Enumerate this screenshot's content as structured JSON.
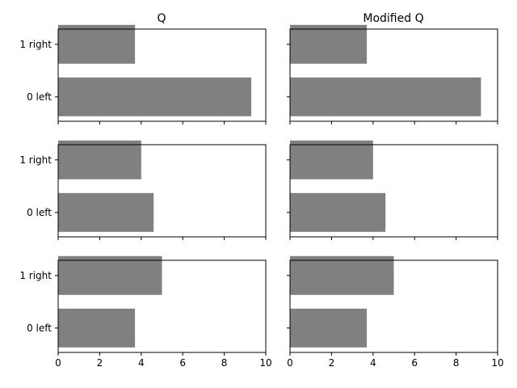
{
  "chart_data": {
    "type": "bar",
    "orientation": "horizontal",
    "layout": "3 rows x 2 columns of subplots, shared x axis",
    "column_titles": [
      "Q",
      "Modified Q"
    ],
    "categories": [
      "0 left",
      "1 right"
    ],
    "xticks": [
      "0",
      "2",
      "4",
      "6",
      "8",
      "10"
    ],
    "xlim": [
      0,
      10
    ],
    "bar_color": "#808080",
    "panels": [
      {
        "row": 0,
        "col": 0,
        "values": [
          9.3,
          3.7
        ]
      },
      {
        "row": 0,
        "col": 1,
        "values": [
          9.2,
          3.7
        ]
      },
      {
        "row": 1,
        "col": 0,
        "values": [
          4.6,
          4.0
        ]
      },
      {
        "row": 1,
        "col": 1,
        "values": [
          4.6,
          4.0
        ]
      },
      {
        "row": 2,
        "col": 0,
        "values": [
          3.7,
          5.0
        ]
      },
      {
        "row": 2,
        "col": 1,
        "values": [
          3.7,
          5.0
        ]
      }
    ]
  }
}
